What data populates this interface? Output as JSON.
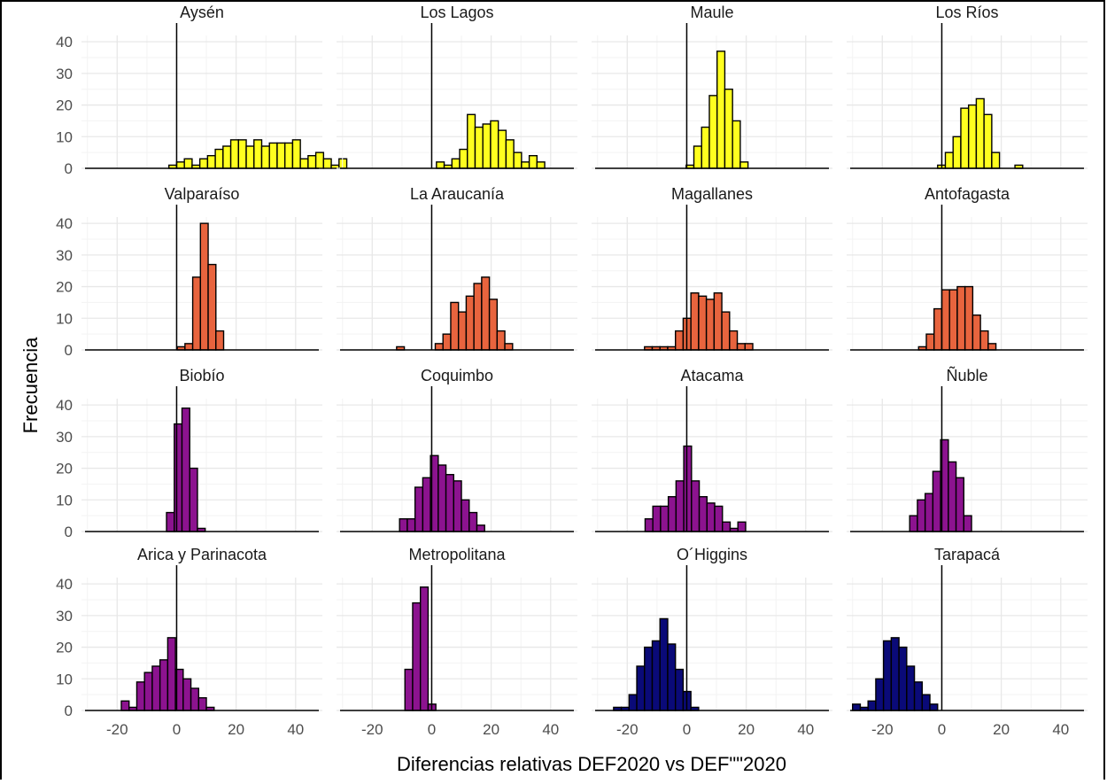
{
  "chart_data": {
    "type": "bar",
    "subtype": "faceted-histogram",
    "xlabel": "Diferencias relativas DEF2020 vs DEF\"\"2020",
    "ylabel": "Frecuencia",
    "xlim": [
      -32,
      49
    ],
    "ylim": [
      0,
      42
    ],
    "x_ticks": [
      "-20",
      "0",
      "20",
      "40"
    ],
    "y_ticks": [
      "0",
      "10",
      "20",
      "30",
      "40"
    ],
    "bin_width": 2.6,
    "vertical_reference_line": 0,
    "grid": true,
    "legend": "none",
    "colors": {
      "yellow": "#ffff1f",
      "orange": "#e8643e",
      "purple": "#8c138f",
      "navy": "#0a0a78"
    },
    "panels": [
      {
        "label": "Aysén",
        "color": "yellow",
        "bin_start": -2.6,
        "counts": [
          1,
          2,
          3,
          1,
          3,
          4,
          6,
          7,
          9,
          9,
          7,
          9,
          7,
          8,
          8,
          8,
          9,
          3,
          4,
          5,
          3,
          1,
          3
        ]
      },
      {
        "label": "Los Lagos",
        "color": "yellow",
        "bin_start": 1.6,
        "counts": [
          2,
          1,
          3,
          6,
          17,
          13,
          14,
          15,
          12,
          9,
          5,
          2,
          4,
          2
        ]
      },
      {
        "label": "Maule",
        "color": "yellow",
        "bin_start": -0.2,
        "counts": [
          1,
          7,
          13,
          23,
          37,
          25,
          15,
          2
        ]
      },
      {
        "label": "Los Ríos",
        "color": "yellow",
        "bin_start": -1.4,
        "counts": [
          1,
          5,
          10,
          19,
          20,
          22,
          17,
          5,
          0,
          0,
          1
        ]
      },
      {
        "label": "Valparaíso",
        "color": "orange",
        "bin_start": 0.2,
        "counts": [
          1,
          2,
          23,
          40,
          27,
          6
        ]
      },
      {
        "label": "La Araucanía",
        "color": "orange",
        "bin_start": -11.8,
        "counts": [
          1,
          0,
          0,
          0,
          0,
          2,
          5,
          15,
          12,
          17,
          21,
          23,
          16,
          6,
          2
        ]
      },
      {
        "label": "Magallanes",
        "color": "orange",
        "bin_start": -14.2,
        "counts": [
          1,
          1,
          1,
          1,
          6,
          10,
          18,
          17,
          16,
          18,
          12,
          6,
          2,
          2
        ]
      },
      {
        "label": "Antofagasta",
        "color": "orange",
        "bin_start": -7.8,
        "counts": [
          1,
          5,
          13,
          19,
          19,
          20,
          20,
          11,
          6,
          2
        ]
      },
      {
        "label": "Biobío",
        "color": "purple",
        "bin_start": -3.4,
        "counts": [
          6,
          34,
          39,
          20,
          1
        ]
      },
      {
        "label": "Coquimbo",
        "color": "purple",
        "bin_start": -10.8,
        "counts": [
          4,
          4,
          14,
          17,
          24,
          21,
          18,
          16,
          10,
          6,
          2
        ]
      },
      {
        "label": "Atacama",
        "color": "purple",
        "bin_start": -14.0,
        "counts": [
          4,
          8,
          8,
          11,
          16,
          27,
          16,
          11,
          9,
          8,
          3,
          1,
          3
        ]
      },
      {
        "label": "Ñuble",
        "color": "purple",
        "bin_start": -10.8,
        "counts": [
          5,
          10,
          12,
          19,
          29,
          22,
          17,
          5
        ]
      },
      {
        "label": "Arica y Parinacota",
        "color": "purple",
        "bin_start": -18.6,
        "counts": [
          3,
          1,
          9,
          12,
          14,
          16,
          23,
          13,
          10,
          7,
          4,
          1
        ]
      },
      {
        "label": "Metropolitana",
        "color": "purple",
        "bin_start": -9.0,
        "counts": [
          13,
          34,
          39,
          2
        ]
      },
      {
        "label": "O´Higgins",
        "color": "navy",
        "bin_start": -24.6,
        "counts": [
          1,
          1,
          5,
          14,
          20,
          22,
          29,
          21,
          13,
          6,
          1
        ]
      },
      {
        "label": "Tarapacá",
        "color": "navy",
        "bin_start": -30.0,
        "counts": [
          2,
          1,
          3,
          10,
          22,
          23,
          20,
          14,
          9,
          5,
          2
        ]
      }
    ]
  }
}
